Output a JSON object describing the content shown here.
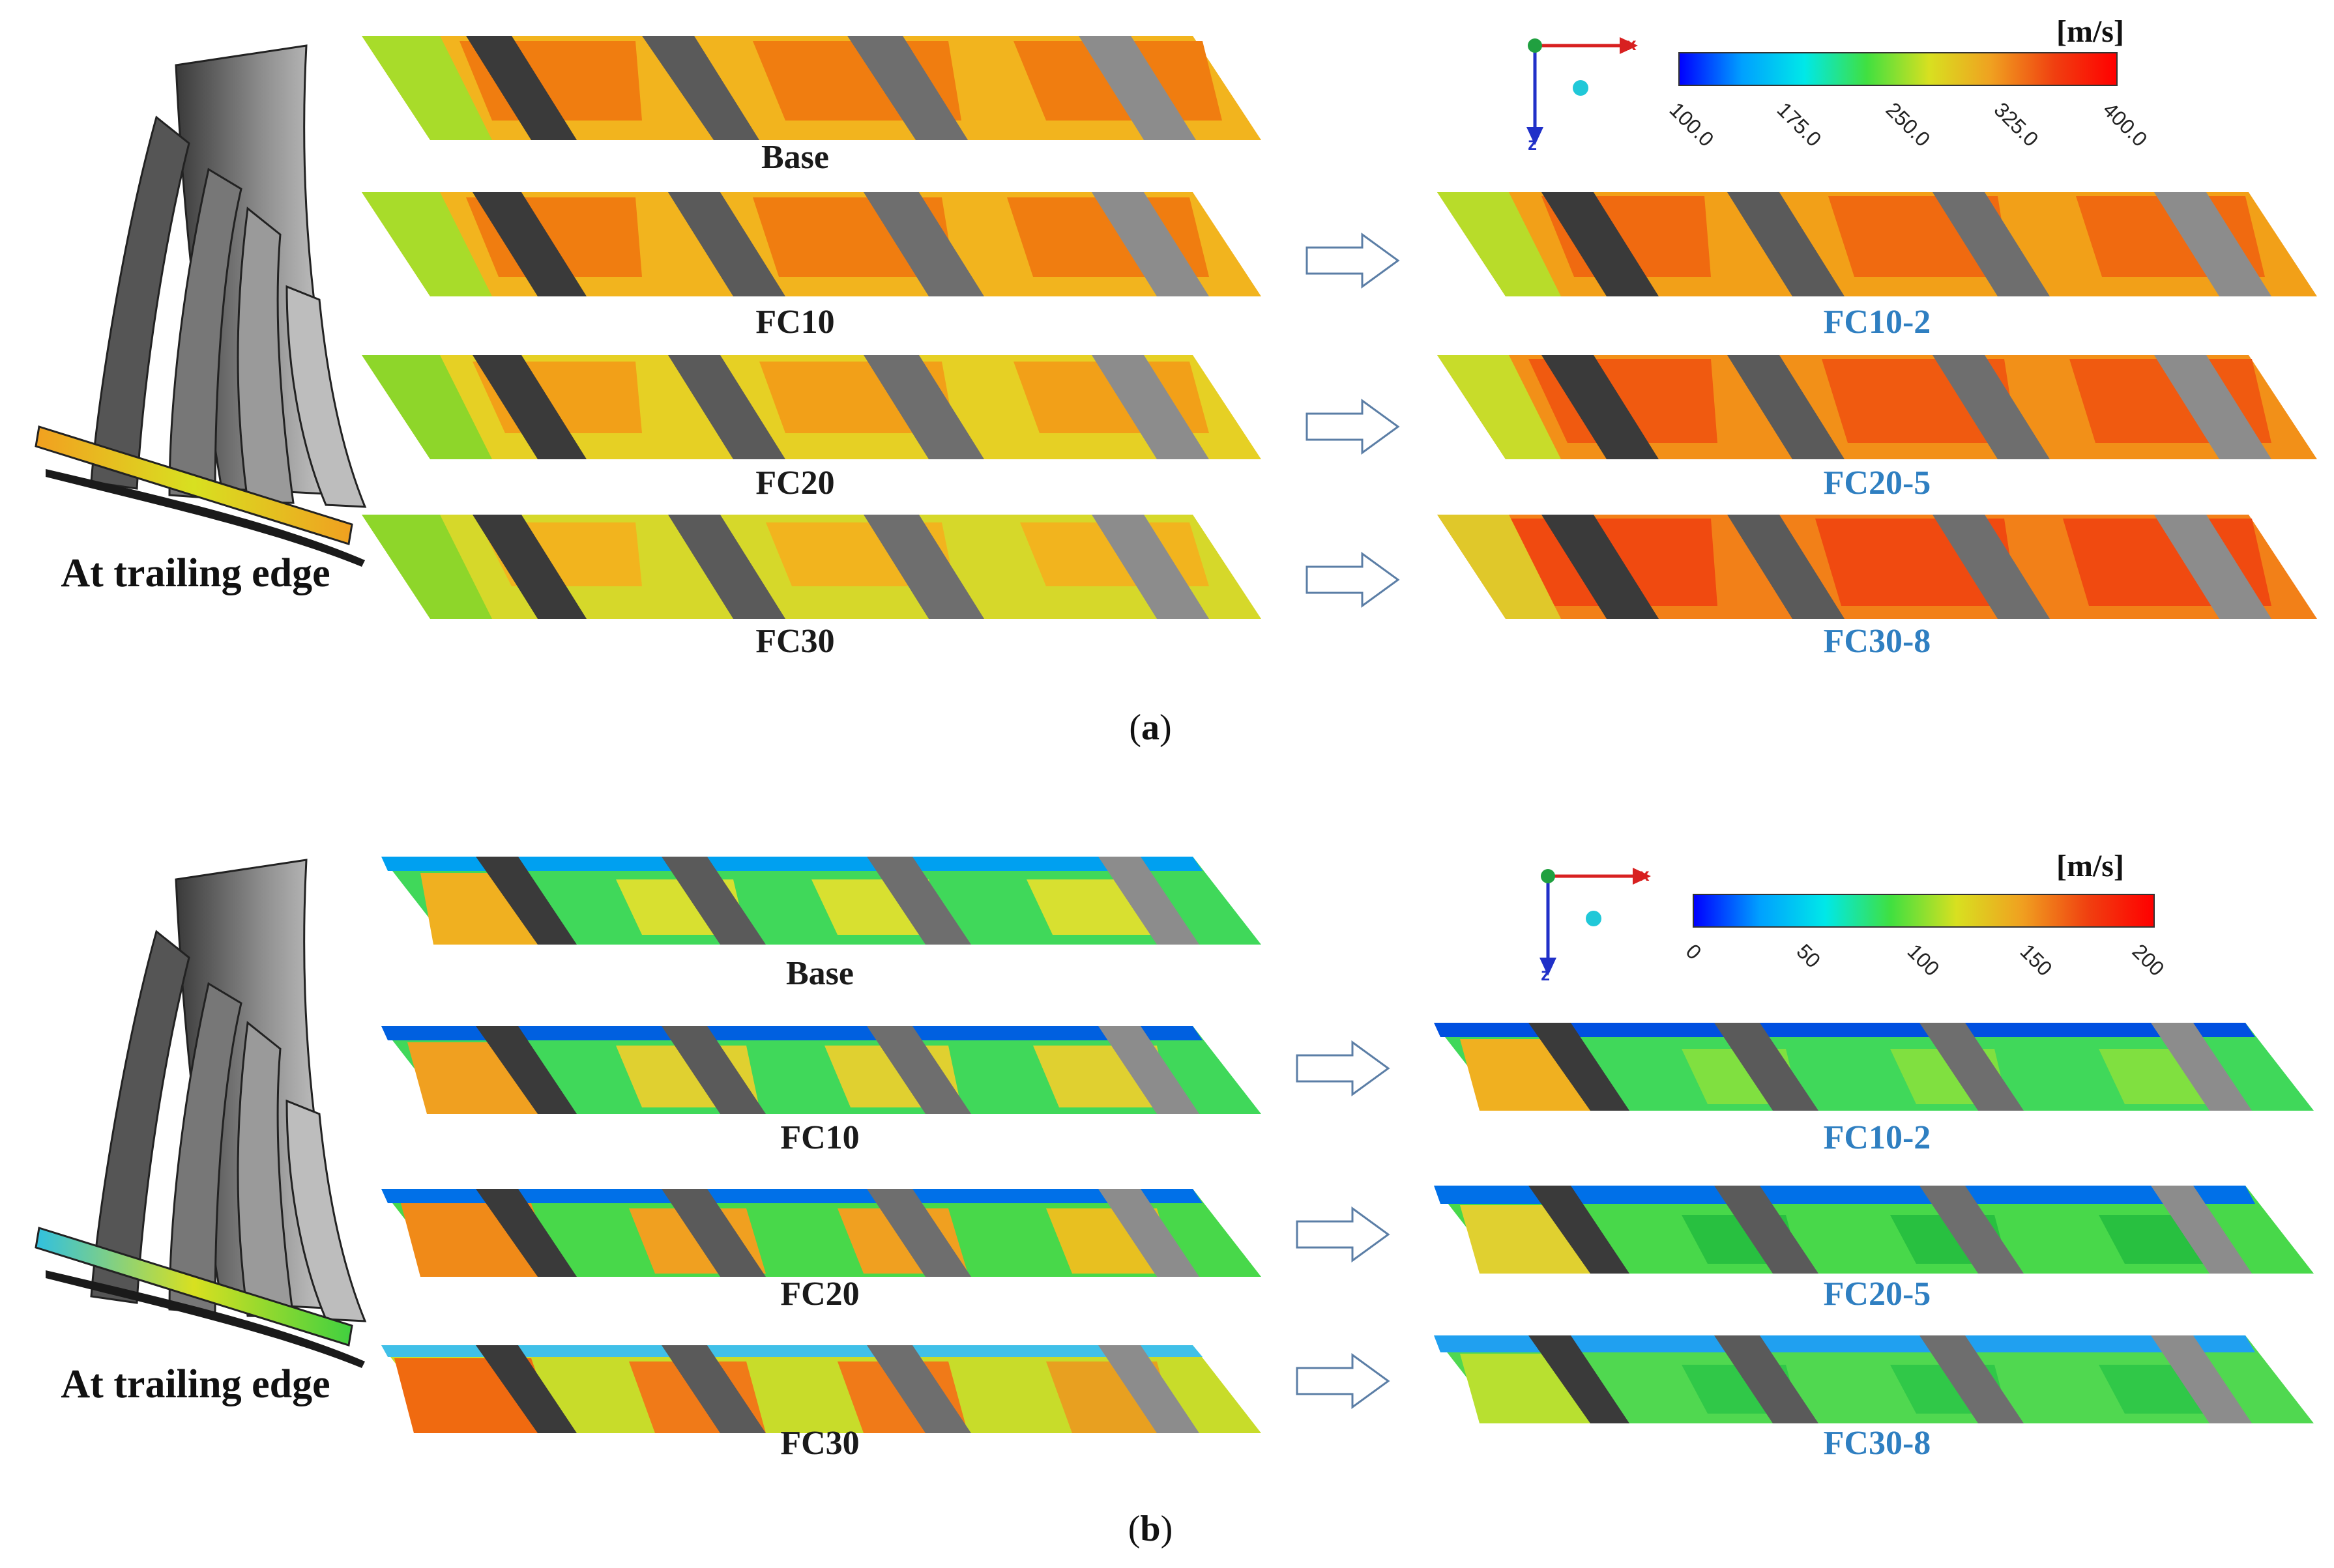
{
  "panels": [
    {
      "id": "a",
      "caption_letter": "a",
      "side_label": "At trailing edge",
      "unit": "[m/s]",
      "colorbar_ticks": [
        "100.0",
        "175.0",
        "250.0",
        "325.0",
        "400.0"
      ],
      "axis_x": "x",
      "axis_z": "z",
      "left_labels": [
        "Base",
        "FC10",
        "FC20",
        "FC30"
      ],
      "right_labels": [
        "FC10-2",
        "FC20-5",
        "FC30-8"
      ],
      "palette": "high"
    },
    {
      "id": "b",
      "caption_letter": "b",
      "side_label": "At trailing edge",
      "unit": "[m/s]",
      "colorbar_ticks": [
        "0",
        "50",
        "100",
        "150",
        "200"
      ],
      "axis_x": "x",
      "axis_z": "z",
      "left_labels": [
        "Base",
        "FC10",
        "FC20",
        "FC30"
      ],
      "right_labels": [
        "FC10-2",
        "FC20-5",
        "FC30-8"
      ],
      "palette": "low"
    }
  ],
  "colors": {
    "label_dark": "#1a1a1a",
    "label_blue": "#2f7fc1",
    "arrow_outline": "#5b7ea6",
    "blade_dark": "#3c3c3c",
    "blade_mid": "#5a5a5a",
    "blade_light": "#8a8a8a"
  }
}
